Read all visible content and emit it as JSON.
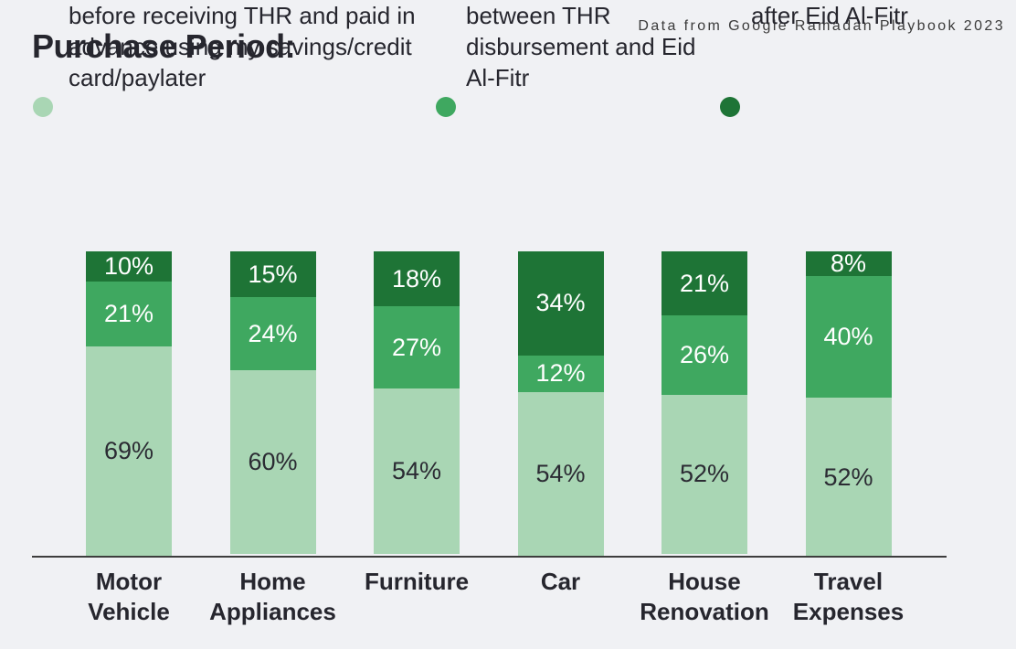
{
  "title": "Purchase Period:",
  "source_note": "Data from Google Ramadan Playbook 2023",
  "colors": {
    "before": "#a9d6b4",
    "between": "#3fa860",
    "after": "#1e7436",
    "background": "#f0f1f4",
    "title_text": "#26262e",
    "label_on_light": "#2b2b33",
    "label_on_dark": "#ffffff",
    "axis_line": "#3d3d3d"
  },
  "legend": [
    {
      "key": "before",
      "color": "#a9d6b4",
      "label": "before receiving THR and paid in advance using my savings/credit card/paylater"
    },
    {
      "key": "between",
      "color": "#3fa860",
      "label": "between THR disbursement and Eid Al-Fitr"
    },
    {
      "key": "after",
      "color": "#1e7436",
      "label": "after Eid Al-Fitr"
    }
  ],
  "chart_data": {
    "type": "bar",
    "stacked": true,
    "unit": "%",
    "orientation": "vertical",
    "categories": [
      "Motor Vehicle",
      "Home Appliances",
      "Furniture",
      "Car",
      "House Renovation",
      "Travel Expenses"
    ],
    "series": [
      {
        "name": "before receiving THR and paid in advance using my savings/credit card/paylater",
        "values": [
          69,
          60,
          54,
          54,
          52,
          52
        ]
      },
      {
        "name": "between THR disbursement and Eid Al-Fitr",
        "values": [
          21,
          24,
          27,
          12,
          26,
          40
        ]
      },
      {
        "name": "after Eid Al-Fitr",
        "values": [
          10,
          15,
          18,
          34,
          21,
          8
        ]
      }
    ],
    "value_labels": "inside",
    "ylim": [
      0,
      100
    ],
    "grid": false,
    "legend_position": "top",
    "title": "Purchase Period:"
  }
}
